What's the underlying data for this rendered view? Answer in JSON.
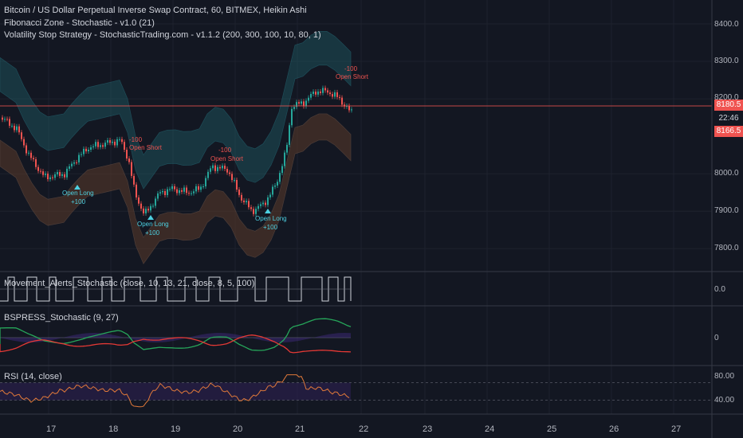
{
  "header": {
    "symbol_line": "Bitcoin / US Dollar Perpetual Inverse Swap Contract, 60, BITMEX, Heikin Ashi",
    "indicator_1": "Fibonacci Zone - Stochastic - v1.0 (21)",
    "indicator_2": "Volatility Stop Strategy - StochasticTrading.com - v1.1.2 (200, 300, 100, 10, 80, 1)"
  },
  "price_axis": {
    "ticks": [
      "8400.0",
      "8300.0",
      "8200.0",
      "8000.0",
      "7900.0",
      "7800.0"
    ],
    "tick_values": [
      8400,
      8300,
      8200,
      8000,
      7900,
      7800
    ],
    "range": [
      7760,
      8440
    ],
    "tags": {
      "upper_price": "8180.5",
      "countdown": "22:46",
      "lower_price": "8166.5"
    },
    "tag_colors": {
      "upper": "#ef5350",
      "countdown": "#ef5350",
      "lower": "#ef5350"
    }
  },
  "time_axis": {
    "labels": [
      "17",
      "18",
      "19",
      "20",
      "21",
      "22",
      "23",
      "24",
      "25",
      "26",
      "27"
    ]
  },
  "annotations": {
    "open_long_1": {
      "label": "Open Long",
      "value": "+100"
    },
    "open_long_2": {
      "label": "Open Long",
      "value": "+100"
    },
    "open_long_3": {
      "label": "Open Long",
      "value": "+100"
    },
    "open_short_1": {
      "label": "Open Short",
      "value": "-100"
    },
    "open_short_2": {
      "label": "Open Short",
      "value": "-100"
    },
    "open_short_3": {
      "label": "Open Short",
      "value": "-100"
    }
  },
  "panes": {
    "movement": {
      "title": "Movement_Alerts_Stochastic (close, 10, 13, 21, close, 8, 5, 100)",
      "axis": "0.0"
    },
    "bspress": {
      "title": "BSPRESS_Stochastic (9, 27)",
      "axis": "0"
    },
    "rsi": {
      "title": "RSI (14, close)",
      "axis_high": "80.00",
      "axis_low": "40.00",
      "upper_band": 70,
      "lower_band": 30
    }
  },
  "colors": {
    "background": "#131722",
    "up": "#26a69a",
    "down": "#ef5350",
    "channel_upper": "#1f5c66",
    "channel_lower": "#5a3a2a",
    "rsi_line": "#e0793a",
    "bspress_buy": "#26a65a",
    "bspress_sell": "#e53935"
  }
}
